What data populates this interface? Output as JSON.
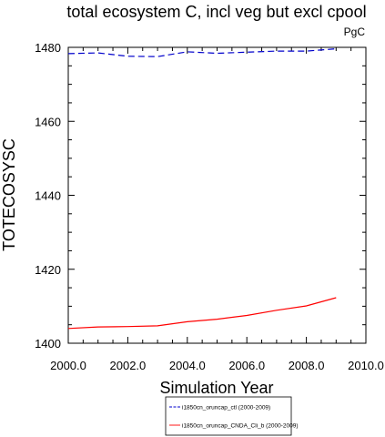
{
  "chart_data": {
    "type": "line",
    "title": "total ecosystem C, incl veg but excl cpool",
    "xlabel": "Simulation Year",
    "ylabel": "TOTECOSYSC",
    "units": "PgC",
    "xlim": [
      2000.0,
      2010.0
    ],
    "ylim": [
      1400,
      1480
    ],
    "xticks": [
      "2000.0",
      "2002.0",
      "2004.0",
      "2006.0",
      "2008.0",
      "2010.0"
    ],
    "yticks": [
      "1400",
      "1420",
      "1440",
      "1460",
      "1480"
    ],
    "x": [
      2000,
      2001,
      2002,
      2003,
      2004,
      2005,
      2006,
      2007,
      2008,
      2009
    ],
    "series": [
      {
        "name": "i1850cn_oruncap_ctl (2000-2009)",
        "color": "#0000cc",
        "style": "dashed",
        "values": [
          1478.3,
          1478.5,
          1477.6,
          1477.5,
          1478.8,
          1478.4,
          1478.7,
          1479.0,
          1479.0,
          1479.6
        ]
      },
      {
        "name": "i1850cn_oruncap_CNDA_Cli_b (2000-2009)",
        "color": "#ff0000",
        "style": "solid",
        "values": [
          1404.0,
          1404.4,
          1404.5,
          1404.7,
          1405.8,
          1406.5,
          1407.5,
          1408.9,
          1410.1,
          1412.3
        ]
      }
    ],
    "grid": false,
    "legend": "bottom"
  }
}
